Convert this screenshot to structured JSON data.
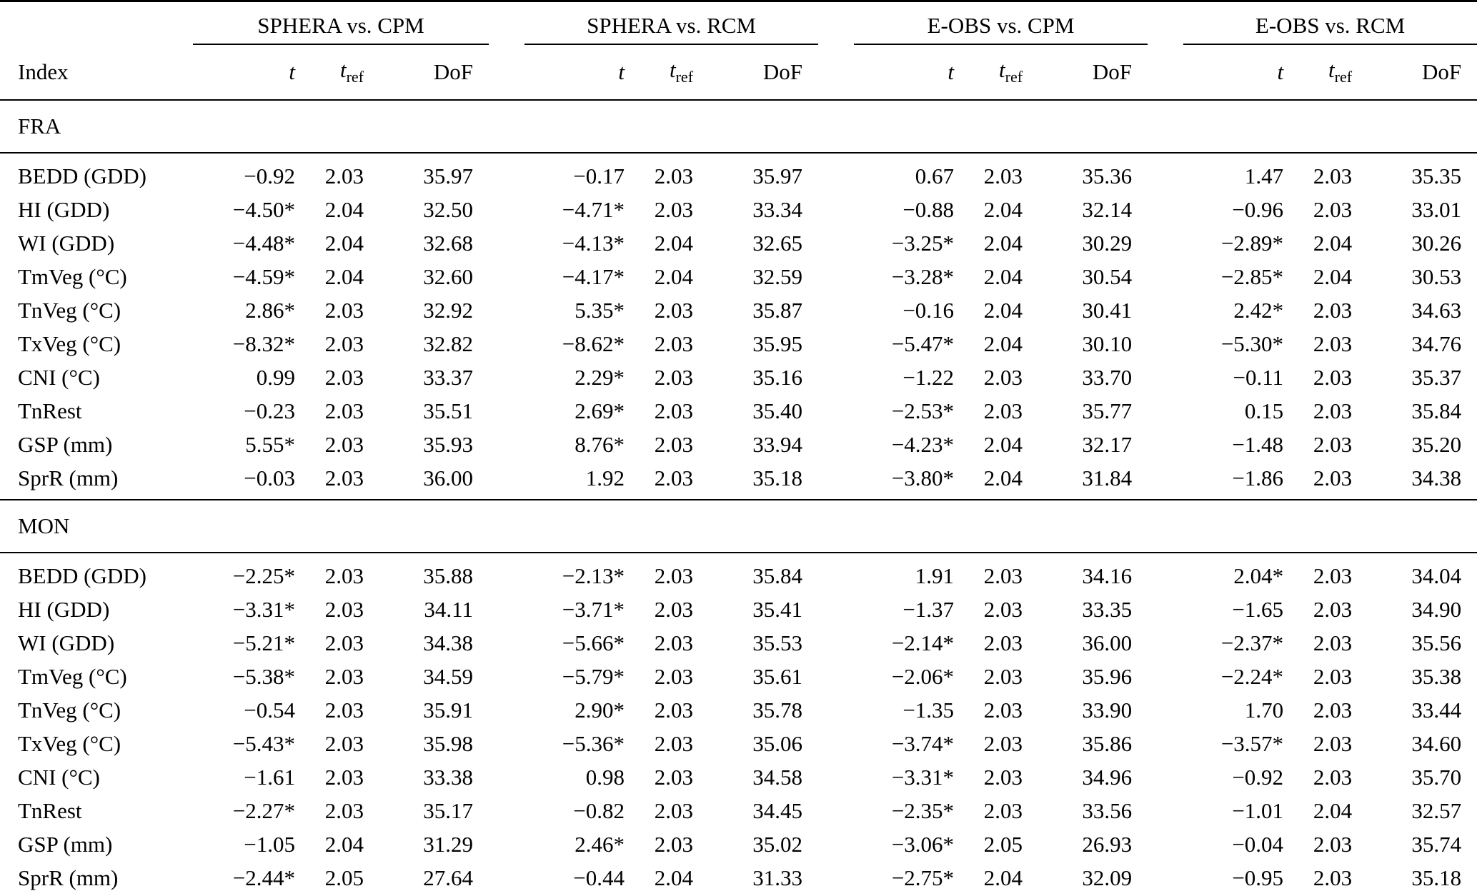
{
  "table": {
    "index_header": "Index",
    "groups": [
      {
        "title": "SPHERA vs. CPM"
      },
      {
        "title": "SPHERA vs. RCM"
      },
      {
        "title": "E-OBS vs. CPM"
      },
      {
        "title": "E-OBS vs. RCM"
      }
    ],
    "subheaders": {
      "t_italic": "t",
      "t_sub": "ref",
      "dof": "DoF"
    },
    "sections": [
      {
        "label": "FRA",
        "rows": [
          {
            "label": "BEDD (GDD)",
            "values": [
              "−0.92",
              "2.03",
              "35.97",
              "−0.17",
              "2.03",
              "35.97",
              "0.67",
              "2.03",
              "35.36",
              "1.47",
              "2.03",
              "35.35"
            ]
          },
          {
            "label": "HI (GDD)",
            "values": [
              "−4.50*",
              "2.04",
              "32.50",
              "−4.71*",
              "2.03",
              "33.34",
              "−0.88",
              "2.04",
              "32.14",
              "−0.96",
              "2.03",
              "33.01"
            ]
          },
          {
            "label": "WI (GDD)",
            "values": [
              "−4.48*",
              "2.04",
              "32.68",
              "−4.13*",
              "2.04",
              "32.65",
              "−3.25*",
              "2.04",
              "30.29",
              "−2.89*",
              "2.04",
              "30.26"
            ]
          },
          {
            "label": "TmVeg (°C)",
            "values": [
              "−4.59*",
              "2.04",
              "32.60",
              "−4.17*",
              "2.04",
              "32.59",
              "−3.28*",
              "2.04",
              "30.54",
              "−2.85*",
              "2.04",
              "30.53"
            ]
          },
          {
            "label": "TnVeg (°C)",
            "values": [
              "2.86*",
              "2.03",
              "32.92",
              "5.35*",
              "2.03",
              "35.87",
              "−0.16",
              "2.04",
              "30.41",
              "2.42*",
              "2.03",
              "34.63"
            ]
          },
          {
            "label": "TxVeg (°C)",
            "values": [
              "−8.32*",
              "2.03",
              "32.82",
              "−8.62*",
              "2.03",
              "35.95",
              "−5.47*",
              "2.04",
              "30.10",
              "−5.30*",
              "2.03",
              "34.76"
            ]
          },
          {
            "label": "CNI (°C)",
            "values": [
              "0.99",
              "2.03",
              "33.37",
              "2.29*",
              "2.03",
              "35.16",
              "−1.22",
              "2.03",
              "33.70",
              "−0.11",
              "2.03",
              "35.37"
            ]
          },
          {
            "label": "TnRest",
            "values": [
              "−0.23",
              "2.03",
              "35.51",
              "2.69*",
              "2.03",
              "35.40",
              "−2.53*",
              "2.03",
              "35.77",
              "0.15",
              "2.03",
              "35.84"
            ]
          },
          {
            "label": "GSP (mm)",
            "values": [
              "5.55*",
              "2.03",
              "35.93",
              "8.76*",
              "2.03",
              "33.94",
              "−4.23*",
              "2.04",
              "32.17",
              "−1.48",
              "2.03",
              "35.20"
            ]
          },
          {
            "label": "SprR (mm)",
            "values": [
              "−0.03",
              "2.03",
              "36.00",
              "1.92",
              "2.03",
              "35.18",
              "−3.80*",
              "2.04",
              "31.84",
              "−1.86",
              "2.03",
              "34.38"
            ]
          }
        ]
      },
      {
        "label": "MON",
        "rows": [
          {
            "label": "BEDD (GDD)",
            "values": [
              "−2.25*",
              "2.03",
              "35.88",
              "−2.13*",
              "2.03",
              "35.84",
              "1.91",
              "2.03",
              "34.16",
              "2.04*",
              "2.03",
              "34.04"
            ]
          },
          {
            "label": "HI (GDD)",
            "values": [
              "−3.31*",
              "2.03",
              "34.11",
              "−3.71*",
              "2.03",
              "35.41",
              "−1.37",
              "2.03",
              "33.35",
              "−1.65",
              "2.03",
              "34.90"
            ]
          },
          {
            "label": "WI (GDD)",
            "values": [
              "−5.21*",
              "2.03",
              "34.38",
              "−5.66*",
              "2.03",
              "35.53",
              "−2.14*",
              "2.03",
              "36.00",
              "−2.37*",
              "2.03",
              "35.56"
            ]
          },
          {
            "label": "TmVeg (°C)",
            "values": [
              "−5.38*",
              "2.03",
              "34.59",
              "−5.79*",
              "2.03",
              "35.61",
              "−2.06*",
              "2.03",
              "35.96",
              "−2.24*",
              "2.03",
              "35.38"
            ]
          },
          {
            "label": "TnVeg (°C)",
            "values": [
              "−0.54",
              "2.03",
              "35.91",
              "2.90*",
              "2.03",
              "35.78",
              "−1.35",
              "2.03",
              "33.90",
              "1.70",
              "2.03",
              "33.44"
            ]
          },
          {
            "label": "TxVeg (°C)",
            "values": [
              "−5.43*",
              "2.03",
              "35.98",
              "−5.36*",
              "2.03",
              "35.06",
              "−3.74*",
              "2.03",
              "35.86",
              "−3.57*",
              "2.03",
              "34.60"
            ]
          },
          {
            "label": "CNI (°C)",
            "values": [
              "−1.61",
              "2.03",
              "33.38",
              "0.98",
              "2.03",
              "34.58",
              "−3.31*",
              "2.03",
              "34.96",
              "−0.92",
              "2.03",
              "35.70"
            ]
          },
          {
            "label": "TnRest",
            "values": [
              "−2.27*",
              "2.03",
              "35.17",
              "−0.82",
              "2.03",
              "34.45",
              "−2.35*",
              "2.03",
              "33.56",
              "−1.01",
              "2.04",
              "32.57"
            ]
          },
          {
            "label": "GSP (mm)",
            "values": [
              "−1.05",
              "2.04",
              "31.29",
              "2.46*",
              "2.03",
              "35.02",
              "−3.06*",
              "2.05",
              "26.93",
              "−0.04",
              "2.03",
              "35.74"
            ]
          },
          {
            "label": "SprR (mm)",
            "values": [
              "−2.44*",
              "2.05",
              "27.64",
              "−0.44",
              "2.04",
              "31.33",
              "−2.75*",
              "2.04",
              "32.09",
              "−0.95",
              "2.03",
              "35.18"
            ]
          }
        ]
      }
    ]
  }
}
